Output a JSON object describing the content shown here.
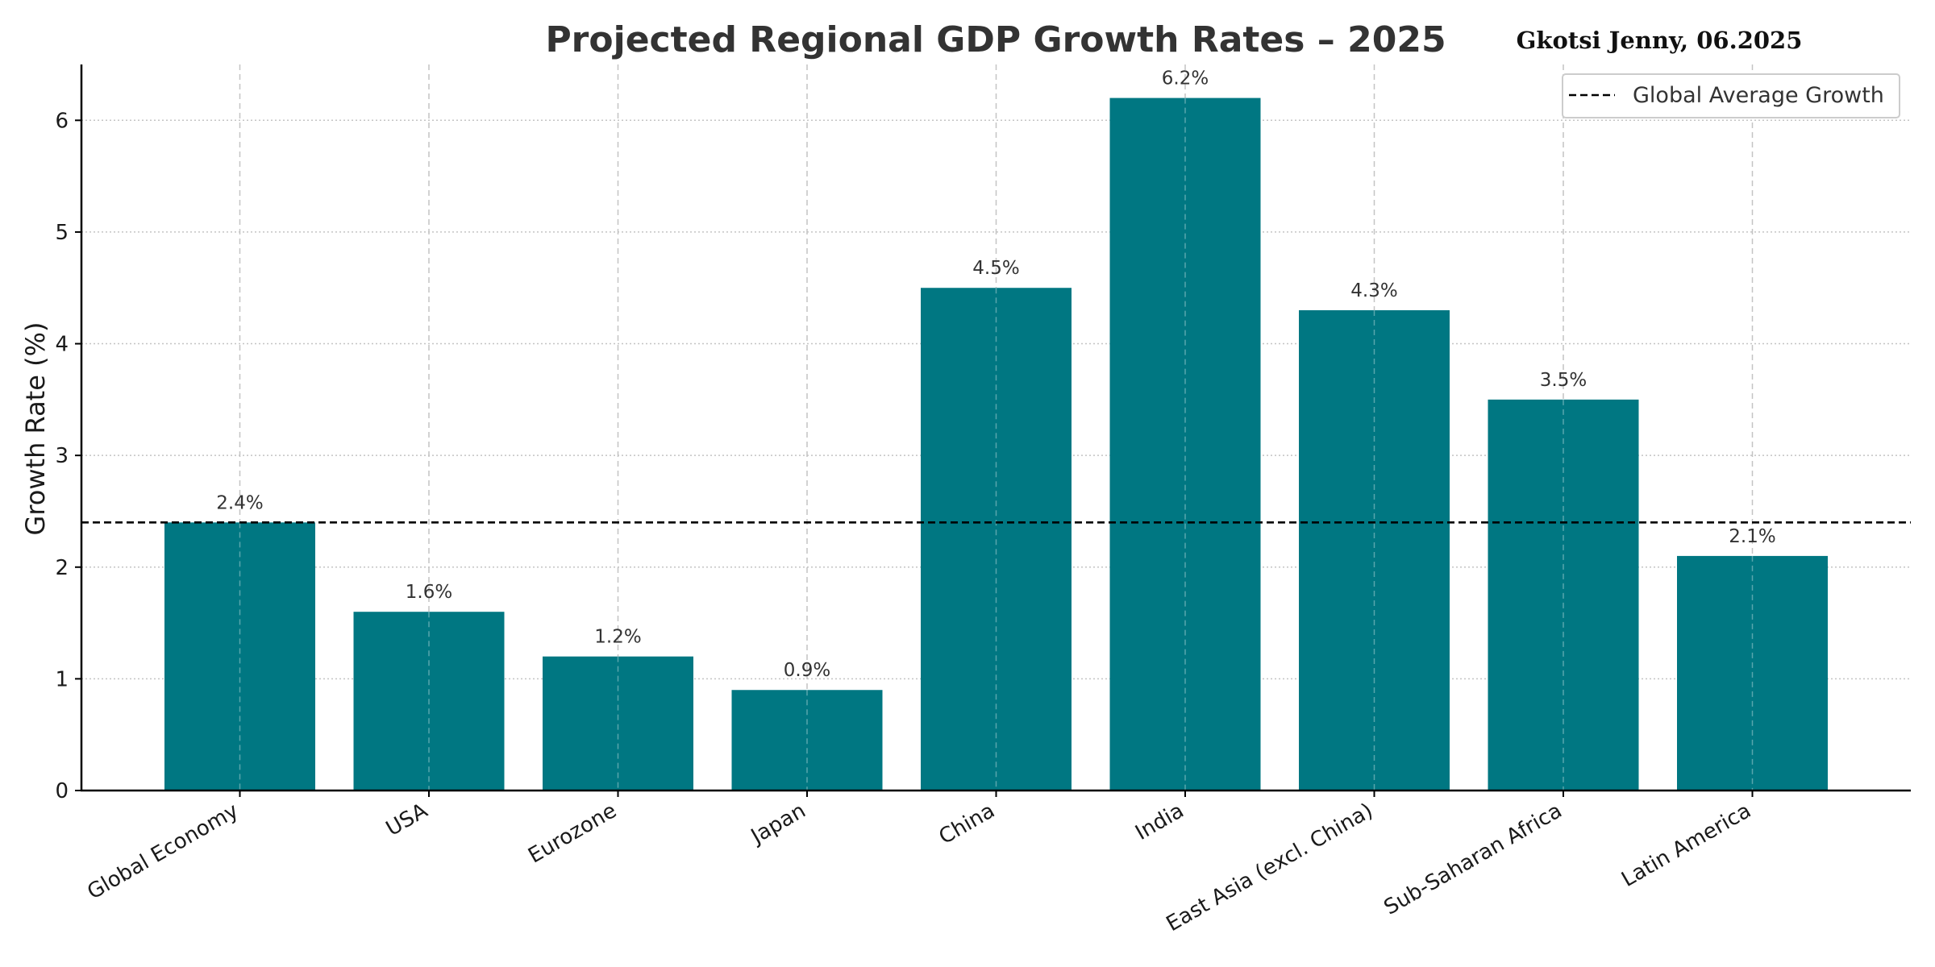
{
  "chart_data": {
    "type": "bar",
    "title": "Projected Regional GDP Growth Rates – 2025",
    "author_note": "Gkotsi Jenny, 06.2025",
    "xlabel": "",
    "ylabel": "Growth Rate (%)",
    "ylim": [
      0,
      6.5
    ],
    "yticks": [
      0,
      1,
      2,
      3,
      4,
      5,
      6
    ],
    "grid": true,
    "bar_color": "#007782",
    "categories": [
      "Global Economy",
      "USA",
      "Eurozone",
      "Japan",
      "China",
      "India",
      "East Asia (excl. China)",
      "Sub-Saharan Africa",
      "Latin America"
    ],
    "values": [
      2.4,
      1.6,
      1.2,
      0.9,
      4.5,
      6.2,
      4.3,
      3.5,
      2.1
    ],
    "data_labels": [
      "2.4%",
      "1.6%",
      "1.2%",
      "0.9%",
      "4.5%",
      "6.2%",
      "4.3%",
      "3.5%",
      "2.1%"
    ],
    "reference_line": {
      "label": "Global Average Growth",
      "value": 2.4,
      "style": "dashed",
      "color": "#000000"
    },
    "legend_position": "top-right"
  }
}
